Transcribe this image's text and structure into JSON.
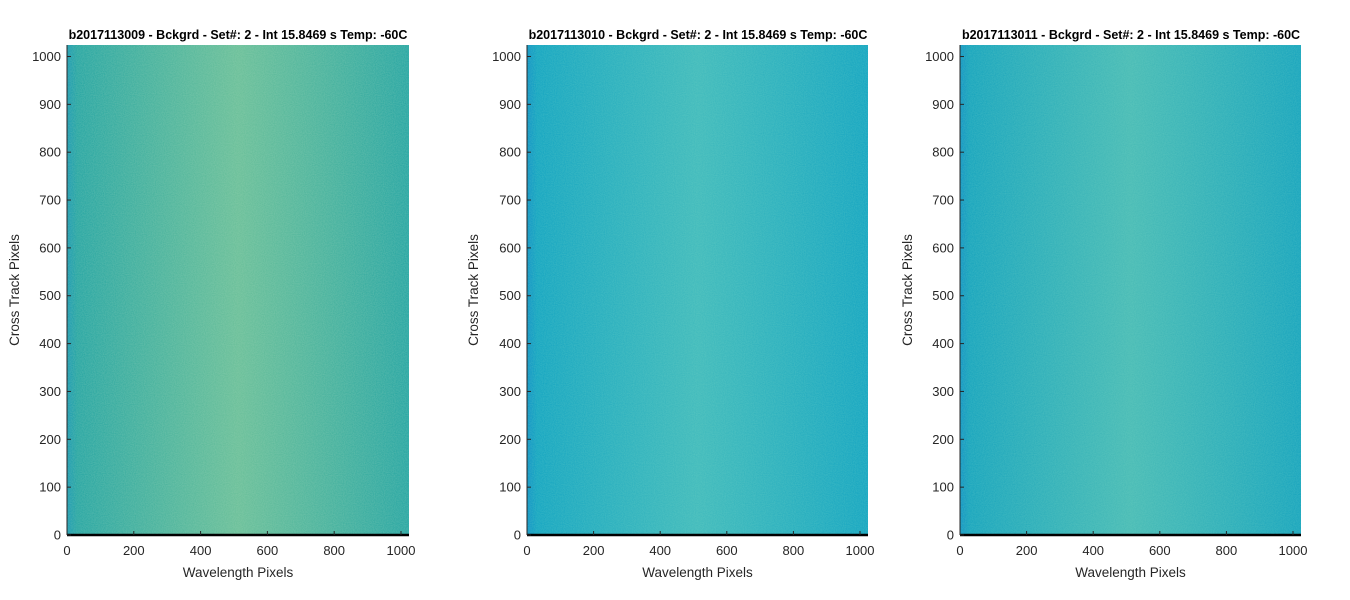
{
  "chart_data": [
    {
      "type": "heatmap",
      "title": "b2017113009 - Bckgrd - Set#: 2 - Int 15.8469 s Temp: -60C",
      "xlabel": "Wavelength Pixels",
      "ylabel": "Cross Track Pixels",
      "xlim": [
        0,
        1024
      ],
      "ylim": [
        0,
        1024
      ],
      "xticks": [
        0,
        200,
        400,
        600,
        800,
        1000
      ],
      "yticks": [
        0,
        100,
        200,
        300,
        400,
        500,
        600,
        700,
        800,
        900,
        1000
      ],
      "grid": false,
      "colormap": "parula",
      "fill": {
        "base": "#2aa7a4",
        "light": "#5bb98f",
        "dark": "#1a98b8",
        "edge": "#1f9cb3"
      }
    },
    {
      "type": "heatmap",
      "title": "b2017113010 - Bckgrd - Set#: 2 - Int 15.8469 s Temp: -60C",
      "xlabel": "Wavelength Pixels",
      "ylabel": "Cross Track Pixels",
      "xlim": [
        0,
        1024
      ],
      "ylim": [
        0,
        1024
      ],
      "xticks": [
        0,
        200,
        400,
        600,
        800,
        1000
      ],
      "yticks": [
        0,
        100,
        200,
        300,
        400,
        500,
        600,
        700,
        800,
        900,
        1000
      ],
      "grid": false,
      "colormap": "parula",
      "fill": {
        "base": "#17a6c2",
        "light": "#2db3b5",
        "dark": "#0f97c9",
        "edge": "#1495c6"
      }
    },
    {
      "type": "heatmap",
      "title": "b2017113011 - Bckgrd - Set#: 2 - Int 15.8469 s Temp: -60C",
      "xlabel": "Wavelength Pixels",
      "ylabel": "Cross Track Pixels",
      "xlim": [
        0,
        1024
      ],
      "ylim": [
        0,
        1024
      ],
      "xticks": [
        0,
        200,
        400,
        600,
        800,
        1000
      ],
      "yticks": [
        0,
        100,
        200,
        300,
        400,
        500,
        600,
        700,
        800,
        900,
        1000
      ],
      "grid": false,
      "colormap": "parula",
      "fill": {
        "base": "#1aa5be",
        "light": "#36b4ae",
        "dark": "#1295c6",
        "edge": "#1596c4"
      }
    }
  ]
}
